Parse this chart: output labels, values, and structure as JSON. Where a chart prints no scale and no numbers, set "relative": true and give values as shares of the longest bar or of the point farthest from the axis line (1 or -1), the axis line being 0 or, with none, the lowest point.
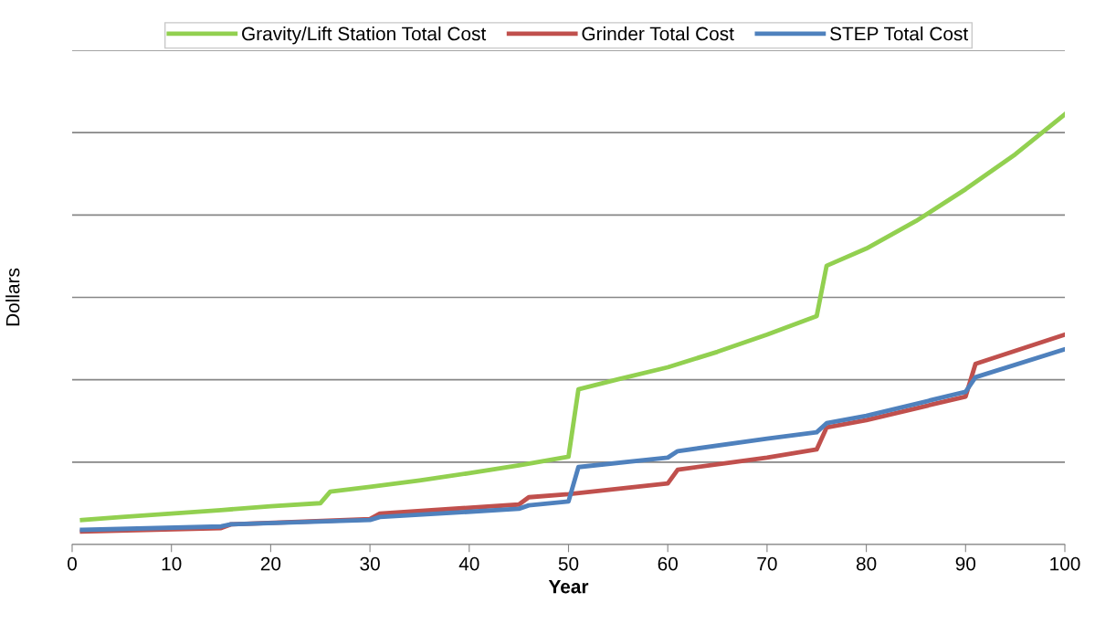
{
  "chart_data": {
    "type": "line",
    "xlabel": "Year",
    "ylabel": "Dollars",
    "relative": true,
    "grid": "y",
    "legend": "top",
    "marker": "none",
    "line_style": "solid",
    "xlim": [
      0,
      100
    ],
    "xticks": [
      0,
      10,
      20,
      30,
      40,
      50,
      60,
      70,
      80,
      90,
      100
    ],
    "series": [
      {
        "name": "Gravity/Lift Station Total Cost",
        "color": "#92d050",
        "x": [
          1,
          5,
          10,
          15,
          20,
          25,
          26,
          30,
          35,
          40,
          45,
          50,
          51,
          55,
          60,
          65,
          70,
          75,
          76,
          80,
          85,
          90,
          95,
          100
        ],
        "values": [
          0.057,
          0.064,
          0.072,
          0.08,
          0.089,
          0.096,
          0.123,
          0.134,
          0.149,
          0.166,
          0.184,
          0.204,
          0.361,
          0.384,
          0.412,
          0.448,
          0.488,
          0.531,
          0.648,
          0.688,
          0.752,
          0.826,
          0.907,
          1.0
        ]
      },
      {
        "name": "Grinder Total Cost",
        "color": "#c0504d",
        "x": [
          1,
          15,
          16,
          30,
          31,
          45,
          46,
          50,
          60,
          61,
          70,
          75,
          76,
          80,
          90,
          91,
          100
        ],
        "values": [
          0.03,
          0.038,
          0.047,
          0.059,
          0.072,
          0.093,
          0.11,
          0.117,
          0.142,
          0.174,
          0.202,
          0.221,
          0.272,
          0.289,
          0.344,
          0.42,
          0.488
        ]
      },
      {
        "name": "STEP Total Cost",
        "color": "#4f81bd",
        "x": [
          1,
          15,
          16,
          30,
          31,
          45,
          46,
          50,
          51,
          60,
          61,
          70,
          75,
          76,
          80,
          90,
          91,
          100
        ],
        "values": [
          0.034,
          0.042,
          0.047,
          0.057,
          0.064,
          0.083,
          0.091,
          0.1,
          0.18,
          0.202,
          0.217,
          0.246,
          0.261,
          0.282,
          0.299,
          0.355,
          0.389,
          0.454
        ]
      }
    ]
  }
}
